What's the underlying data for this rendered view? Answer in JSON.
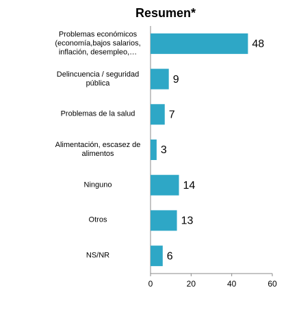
{
  "chart_data": {
    "type": "bar",
    "orientation": "horizontal",
    "title": "Resumen*",
    "categories": [
      "Problemas económicos (economía,bajos salarios, inflación, desempleo,…",
      "Delincuencia / seguridad pública",
      "Problemas de la salud",
      "Alimentación, escasez de alimentos",
      "Ninguno",
      "Otros",
      "NS/NR"
    ],
    "values": [
      48,
      9,
      7,
      3,
      14,
      13,
      6
    ],
    "color": "#2ea7c6",
    "xlim": [
      0,
      60
    ],
    "xticks": [
      0,
      20,
      40,
      60
    ]
  }
}
